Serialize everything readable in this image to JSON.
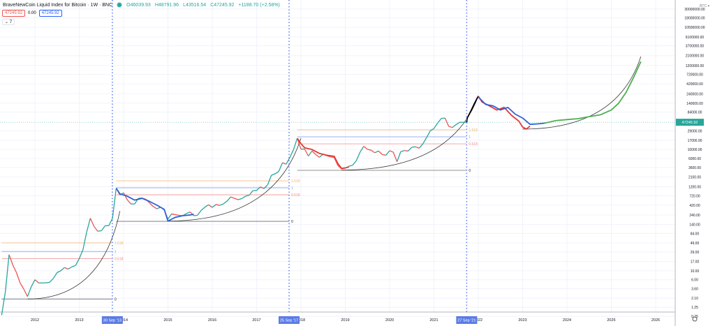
{
  "header": {
    "title": "BraveNewCoin Liquid Index for Bitcoin · 1W · BNC",
    "open": "O46039.93",
    "high": "H48791.96",
    "low": "L43516.54",
    "close": "C47245.92",
    "change": "+1188.70 (+2.58%)",
    "box_left": "47245.92",
    "spread": "0.00",
    "box_right": "47245.92",
    "collapse": "⌄ 7",
    "currency": "BTC ▾"
  },
  "colors": {
    "up": "#26a69a",
    "down": "#ef5350",
    "proj_blue": "#2e5fd8",
    "proj_red": "#e53935",
    "proj_black": "#000000",
    "proj_green": "#4caf50",
    "fib_1618": "#f5b26b",
    "fib_1": "#8aa4f2",
    "fib_0618": "#f08a8a",
    "fib_0": "#555555",
    "vline": "#5c7cfa",
    "price_tag": "#26a69a"
  },
  "chart_data": {
    "type": "line",
    "title": "",
    "y_scale": "log",
    "ylim": [
      0.7,
      50000000
    ],
    "xlim": [
      "2011-04",
      "2026-06"
    ],
    "grid": true,
    "last_price": "47245.92",
    "y_ticks": [
      "30000000.00",
      "18000000.00",
      "10500000.00",
      "6100000.00",
      "3700000.00",
      "2100000.00",
      "1200000.00",
      "720000.00",
      "420000.00",
      "240000.00",
      "140000.00",
      "84000.00",
      "29000.00",
      "17000.00",
      "10000.00",
      "6000.00",
      "3600.00",
      "2100.00",
      "1200.00",
      "720.00",
      "420.00",
      "240.00",
      "140.00",
      "84.00",
      "49.00",
      "29.00",
      "17.00",
      "10.00",
      "6.00",
      "3.60",
      "2.10",
      "1.25",
      "0.75"
    ],
    "x_ticks": [
      "2012",
      "2013",
      "2014",
      "2015",
      "2016",
      "2017",
      "2018",
      "2019",
      "2020",
      "2021",
      "2022",
      "2023",
      "2024",
      "2025",
      "2026"
    ],
    "price": [
      [
        "2011-04",
        0.8
      ],
      [
        "2011-05",
        3
      ],
      [
        "2011-06",
        25
      ],
      [
        "2011-07",
        14
      ],
      [
        "2011-08",
        9
      ],
      [
        "2011-09",
        5
      ],
      [
        "2011-10",
        3.5
      ],
      [
        "2011-11",
        2.3
      ],
      [
        "2011-12",
        4
      ],
      [
        "2012-01",
        6
      ],
      [
        "2012-02",
        5
      ],
      [
        "2012-03",
        5
      ],
      [
        "2012-04",
        5
      ],
      [
        "2012-05",
        5.2
      ],
      [
        "2012-06",
        6.5
      ],
      [
        "2012-07",
        9
      ],
      [
        "2012-08",
        10
      ],
      [
        "2012-09",
        12
      ],
      [
        "2012-10",
        11
      ],
      [
        "2012-11",
        12.5
      ],
      [
        "2012-12",
        13.5
      ],
      [
        "2013-01",
        20
      ],
      [
        "2013-02",
        33
      ],
      [
        "2013-03",
        90
      ],
      [
        "2013-04",
        200
      ],
      [
        "2013-05",
        125
      ],
      [
        "2013-06",
        95
      ],
      [
        "2013-07",
        98
      ],
      [
        "2013-08",
        130
      ],
      [
        "2013-09",
        130
      ],
      [
        "2013-10",
        200
      ],
      [
        "2013-11",
        1100
      ],
      [
        "2013-12",
        750
      ],
      [
        "2014-01",
        850
      ],
      [
        "2014-02",
        570
      ],
      [
        "2014-03",
        450
      ],
      [
        "2014-04",
        450
      ],
      [
        "2014-05",
        620
      ],
      [
        "2014-06",
        630
      ],
      [
        "2014-07",
        590
      ],
      [
        "2014-08",
        480
      ],
      [
        "2014-09",
        390
      ],
      [
        "2014-10",
        340
      ],
      [
        "2014-11",
        375
      ],
      [
        "2014-12",
        320
      ],
      [
        "2015-01",
        190
      ],
      [
        "2015-02",
        255
      ],
      [
        "2015-03",
        245
      ],
      [
        "2015-04",
        235
      ],
      [
        "2015-05",
        230
      ],
      [
        "2015-06",
        260
      ],
      [
        "2015-07",
        285
      ],
      [
        "2015-08",
        230
      ],
      [
        "2015-09",
        236
      ],
      [
        "2015-10",
        312
      ],
      [
        "2015-11",
        375
      ],
      [
        "2015-12",
        430
      ],
      [
        "2016-01",
        370
      ],
      [
        "2016-02",
        436
      ],
      [
        "2016-03",
        415
      ],
      [
        "2016-04",
        450
      ],
      [
        "2016-05",
        530
      ],
      [
        "2016-06",
        670
      ],
      [
        "2016-07",
        620
      ],
      [
        "2016-08",
        575
      ],
      [
        "2016-09",
        610
      ],
      [
        "2016-10",
        700
      ],
      [
        "2016-11",
        740
      ],
      [
        "2016-12",
        960
      ],
      [
        "2017-01",
        970
      ],
      [
        "2017-02",
        1190
      ],
      [
        "2017-03",
        1080
      ],
      [
        "2017-04",
        1350
      ],
      [
        "2017-05",
        2300
      ],
      [
        "2017-06",
        2500
      ],
      [
        "2017-07",
        2870
      ],
      [
        "2017-08",
        4700
      ],
      [
        "2017-09",
        4340
      ],
      [
        "2017-10",
        6400
      ],
      [
        "2017-11",
        10000
      ],
      [
        "2017-12",
        19000
      ],
      [
        "2018-01",
        10200
      ],
      [
        "2018-02",
        10300
      ],
      [
        "2018-03",
        6900
      ],
      [
        "2018-04",
        9200
      ],
      [
        "2018-05",
        7500
      ],
      [
        "2018-06",
        6400
      ],
      [
        "2018-07",
        7700
      ],
      [
        "2018-08",
        7000
      ],
      [
        "2018-09",
        6600
      ],
      [
        "2018-10",
        6300
      ],
      [
        "2018-11",
        4000
      ],
      [
        "2018-12",
        3300
      ],
      [
        "2019-01",
        3450
      ],
      [
        "2019-02",
        3850
      ],
      [
        "2019-03",
        4100
      ],
      [
        "2019-04",
        5300
      ],
      [
        "2019-05",
        8600
      ],
      [
        "2019-06",
        12000
      ],
      [
        "2019-07",
        10100
      ],
      [
        "2019-08",
        9600
      ],
      [
        "2019-09",
        8300
      ],
      [
        "2019-10",
        9200
      ],
      [
        "2019-11",
        7500
      ],
      [
        "2019-12",
        7200
      ],
      [
        "2020-01",
        9350
      ],
      [
        "2020-02",
        8600
      ],
      [
        "2020-03",
        5000
      ],
      [
        "2020-04",
        8800
      ],
      [
        "2020-05",
        9450
      ],
      [
        "2020-06",
        9140
      ],
      [
        "2020-07",
        11350
      ],
      [
        "2020-08",
        11650
      ],
      [
        "2020-09",
        10780
      ],
      [
        "2020-10",
        13800
      ],
      [
        "2020-11",
        19700
      ],
      [
        "2020-12",
        29000
      ],
      [
        "2021-01",
        33100
      ],
      [
        "2021-02",
        45200
      ],
      [
        "2021-03",
        58800
      ],
      [
        "2021-04",
        60000
      ],
      [
        "2021-05",
        37300
      ],
      [
        "2021-06",
        35000
      ],
      [
        "2021-07",
        41500
      ],
      [
        "2021-08",
        47100
      ],
      [
        "2021-09-27",
        47245.92
      ]
    ],
    "projections": [
      {
        "color": "proj_blue",
        "points": [
          [
            "2013-11",
            1100
          ],
          [
            "2013-12",
            800
          ],
          [
            "2014-02",
            700
          ],
          [
            "2014-04",
            560
          ],
          [
            "2014-06",
            620
          ],
          [
            "2014-08",
            520
          ],
          [
            "2014-10",
            420
          ],
          [
            "2014-12",
            330
          ],
          [
            "2015-01",
            170
          ],
          [
            "2015-03",
            210
          ],
          [
            "2015-05",
            230
          ],
          [
            "2015-07",
            240
          ],
          [
            "2015-08",
            250
          ]
        ]
      },
      {
        "color": "proj_red",
        "points": [
          [
            "2017-12",
            19000
          ],
          [
            "2018-01",
            14000
          ],
          [
            "2018-02",
            11000
          ],
          [
            "2018-04",
            10000
          ],
          [
            "2018-06",
            8000
          ],
          [
            "2018-08",
            7200
          ],
          [
            "2018-10",
            6800
          ],
          [
            "2018-11",
            4500
          ],
          [
            "2018-12",
            3400
          ],
          [
            "2019-01",
            3500
          ],
          [
            "2019-02",
            3700
          ]
        ]
      },
      {
        "color": "proj_black",
        "points": [
          [
            "2021-09-27",
            47245.92
          ],
          [
            "2021-10",
            60000
          ],
          [
            "2021-11",
            90000
          ],
          [
            "2021-12",
            140000
          ],
          [
            "2022-01",
            210000
          ]
        ]
      },
      {
        "color": "proj_red",
        "points": [
          [
            "2022-01",
            210000
          ],
          [
            "2022-02",
            150000
          ],
          [
            "2022-04",
            120000
          ],
          [
            "2022-06",
            95000
          ],
          [
            "2022-08",
            110000
          ],
          [
            "2022-10",
            70000
          ],
          [
            "2022-12",
            50000
          ],
          [
            "2023-01",
            36000
          ],
          [
            "2023-02",
            32000
          ],
          [
            "2023-03",
            38000
          ]
        ]
      },
      {
        "color": "proj_blue",
        "points": [
          [
            "2022-01",
            200000
          ],
          [
            "2022-03",
            130000
          ],
          [
            "2022-05",
            120000
          ],
          [
            "2022-07",
            95000
          ],
          [
            "2022-09",
            110000
          ],
          [
            "2022-11",
            75000
          ],
          [
            "2023-01",
            60000
          ],
          [
            "2023-03",
            42000
          ],
          [
            "2023-05",
            43000
          ],
          [
            "2023-07",
            45000
          ]
        ]
      },
      {
        "color": "proj_green",
        "points": [
          [
            "2023-07",
            45000
          ],
          [
            "2023-10",
            52000
          ],
          [
            "2024-01",
            55000
          ],
          [
            "2024-04",
            58000
          ],
          [
            "2024-07",
            65000
          ],
          [
            "2024-10",
            72000
          ],
          [
            "2025-01",
            95000
          ],
          [
            "2025-03",
            140000
          ],
          [
            "2025-05",
            260000
          ],
          [
            "2025-07",
            600000
          ],
          [
            "2025-09",
            1500000
          ]
        ]
      }
    ],
    "curves": [
      {
        "start": [
          "2011-11",
          2.0
        ],
        "end": [
          "2013-12",
          300
        ]
      },
      {
        "start": [
          "2015-01",
          170
        ],
        "end": [
          "2018-01",
          19000
        ]
      },
      {
        "start": [
          "2018-12",
          3100
        ],
        "end": [
          "2022-01",
          210000
        ]
      },
      {
        "start": [
          "2023-01",
          32000
        ],
        "end": [
          "2025-09",
          2000000
        ]
      }
    ],
    "fib_sets": [
      {
        "from": "2011-04",
        "to": "2013-09-30",
        "levels": [
          {
            "label": "1.618",
            "price": 49,
            "color": "fib_1618"
          },
          {
            "label": "1",
            "price": 30,
            "color": "fib_1"
          },
          {
            "label": "0.618",
            "price": 20,
            "color": "fib_0618"
          },
          {
            "label": "0",
            "price": 2.0,
            "color": "fib_0"
          }
        ]
      },
      {
        "from": "2013-11",
        "to": "2017-09-25",
        "levels": [
          {
            "label": "1.618",
            "price": 1680,
            "color": "fib_1618"
          },
          {
            "label": "1",
            "price": 1130,
            "color": "fib_1"
          },
          {
            "label": "0.618",
            "price": 760,
            "color": "fib_0618"
          },
          {
            "label": "0",
            "price": 167,
            "color": "fib_0"
          }
        ]
      },
      {
        "from": "2017-12",
        "to": "2021-09-27",
        "levels": [
          {
            "label": "1.618",
            "price": 30700,
            "color": "fib_1618"
          },
          {
            "label": "1",
            "price": 20600,
            "color": "fib_1"
          },
          {
            "label": "0.618",
            "price": 13800,
            "color": "fib_0618"
          },
          {
            "label": "0",
            "price": 3050,
            "color": "fib_0"
          }
        ]
      }
    ],
    "vertical_markers": [
      {
        "date": "2013-09-30",
        "label": "30 Sep '13"
      },
      {
        "date": "2017-09-25",
        "label": "25 Sep '17"
      },
      {
        "date": "2021-09-27",
        "label": "27 Sep '21"
      }
    ]
  }
}
